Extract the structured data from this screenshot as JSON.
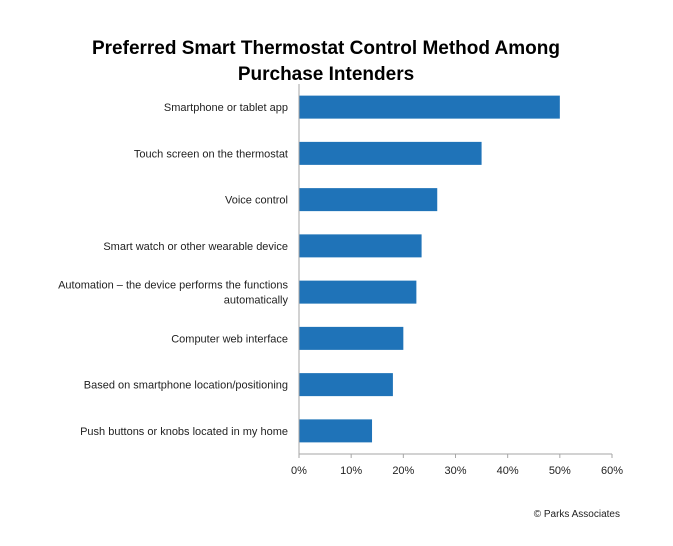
{
  "chart_data": {
    "type": "bar",
    "orientation": "horizontal",
    "title_lines": [
      "Preferred Smart Thermostat Control Method Among",
      "Purchase Intenders"
    ],
    "categories": [
      [
        "Smartphone or tablet app"
      ],
      [
        "Touch screen on the thermostat"
      ],
      [
        "Voice control"
      ],
      [
        "Smart watch or other wearable device"
      ],
      [
        "Automation – the device performs the functions",
        "automatically"
      ],
      [
        "Computer web interface"
      ],
      [
        "Based on smartphone location/positioning"
      ],
      [
        "Push buttons or knobs located in my home"
      ]
    ],
    "values": [
      50,
      35,
      26.5,
      23.5,
      22.5,
      20,
      18,
      14
    ],
    "xlim": [
      0,
      60
    ],
    "x_ticks": [
      0,
      10,
      20,
      30,
      40,
      50,
      60
    ],
    "x_tick_labels": [
      "0%",
      "10%",
      "20%",
      "30%",
      "40%",
      "50%",
      "60%"
    ],
    "grid": false,
    "legend": "none",
    "bar_color": "#1f73b8",
    "source": "© Parks Associates"
  }
}
